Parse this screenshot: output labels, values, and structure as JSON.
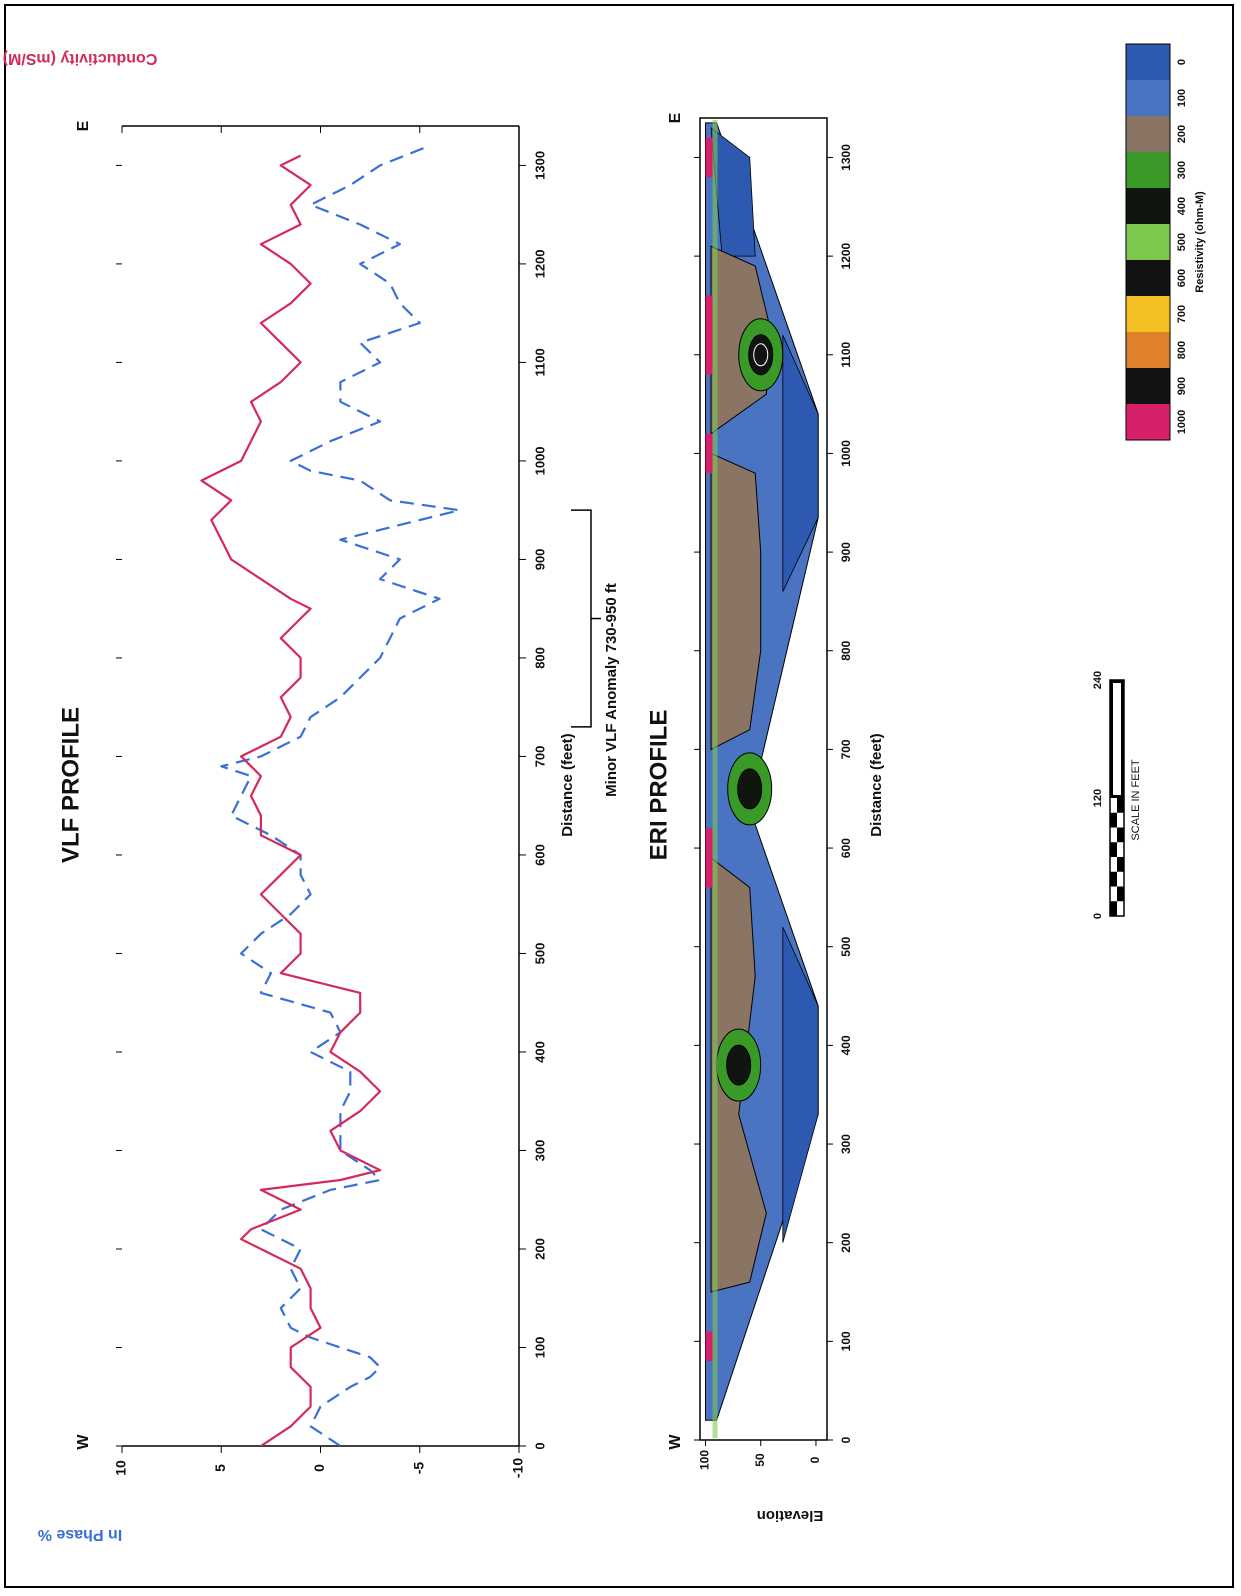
{
  "figure": {
    "scale_label": "SCALE IN FEET",
    "scale_ticks": [
      "0",
      "120",
      "240"
    ]
  },
  "chart_data": [
    {
      "type": "line",
      "title": "VLF PROFILE",
      "xlabel": "Distance (feet)",
      "ylabel": "In Phase %",
      "y2label": "Conductivity (mS/M)",
      "xlim": [
        0,
        1340
      ],
      "ylim": [
        -10,
        10
      ],
      "xticks": [
        "0",
        "100",
        "200",
        "300",
        "400",
        "500",
        "600",
        "700",
        "800",
        "900",
        "1000",
        "1100",
        "1200",
        "1300"
      ],
      "yticks": [
        "10",
        "5",
        "0",
        "-5",
        "-10"
      ],
      "end_labels": {
        "left": "W",
        "right": "E"
      },
      "annotation": {
        "text": "Minor VLF Anomaly 730-950 ft",
        "x_range": [
          730,
          950
        ]
      },
      "series": [
        {
          "name": "In Phase %",
          "color": "#3a6fd8",
          "style": "dashed",
          "x": [
            0,
            20,
            40,
            60,
            70,
            80,
            90,
            100,
            110,
            120,
            140,
            160,
            180,
            200,
            220,
            240,
            260,
            270,
            280,
            300,
            320,
            340,
            360,
            380,
            400,
            420,
            440,
            460,
            480,
            500,
            520,
            540,
            560,
            580,
            600,
            620,
            640,
            660,
            680,
            690,
            700,
            720,
            740,
            760,
            780,
            800,
            820,
            840,
            860,
            880,
            900,
            920,
            940,
            950,
            960,
            980,
            990,
            1000,
            1020,
            1040,
            1060,
            1080,
            1100,
            1120,
            1140,
            1160,
            1180,
            1200,
            1220,
            1240,
            1260,
            1280,
            1300,
            1320
          ],
          "y": [
            -1,
            0.5,
            0,
            -1.5,
            -2.5,
            -3,
            -2.5,
            -1,
            0.5,
            1.5,
            2,
            1,
            1.5,
            1,
            3,
            2,
            -0.5,
            -3,
            -2.5,
            -1,
            -1,
            -1,
            -1.5,
            -1.5,
            0.5,
            -1,
            -0.5,
            3,
            2.5,
            4,
            3,
            1.5,
            0.5,
            1,
            1,
            2.5,
            4.5,
            4,
            3.5,
            5,
            3,
            1,
            0.5,
            -1,
            -2,
            -3,
            -3.5,
            -4,
            -6,
            -3,
            -4,
            -1,
            -5,
            -7,
            -3.5,
            -2,
            0.5,
            1.5,
            -0.5,
            -3,
            -1,
            -1,
            -3,
            -2,
            -5,
            -4,
            -3.5,
            -2,
            -4,
            -2,
            0.5,
            -1.5,
            -3,
            -5.5
          ]
        },
        {
          "name": "Conductivity (mS/M)",
          "color": "#d42a5a",
          "style": "solid",
          "x": [
            0,
            20,
            40,
            60,
            80,
            100,
            120,
            140,
            160,
            180,
            200,
            210,
            220,
            240,
            260,
            270,
            280,
            300,
            320,
            340,
            360,
            380,
            400,
            420,
            440,
            460,
            480,
            500,
            520,
            540,
            560,
            580,
            600,
            610,
            620,
            640,
            660,
            680,
            700,
            720,
            740,
            760,
            780,
            800,
            820,
            840,
            850,
            860,
            880,
            900,
            920,
            940,
            960,
            980,
            1000,
            1020,
            1040,
            1060,
            1080,
            1100,
            1120,
            1140,
            1160,
            1180,
            1200,
            1220,
            1240,
            1260,
            1280,
            1300,
            1310
          ],
          "y": [
            3,
            1.5,
            0.5,
            0.5,
            1.5,
            1.5,
            0,
            0.5,
            0.5,
            1,
            3,
            4,
            3.5,
            1,
            3,
            -1,
            -3,
            -1,
            -0.5,
            -2,
            -3,
            -2,
            -0.5,
            -1,
            -2,
            -2,
            2,
            1,
            1,
            2,
            3,
            2,
            1,
            2,
            3,
            3,
            3.5,
            3,
            4,
            2,
            1.5,
            2,
            1,
            1,
            2,
            1,
            0.5,
            1.5,
            3,
            4.5,
            5,
            5.5,
            4.5,
            6,
            4,
            3.5,
            3,
            3.5,
            2,
            1,
            2,
            3,
            1.5,
            0.5,
            1.5,
            3,
            1,
            1.5,
            0.5,
            2,
            1
          ]
        }
      ]
    },
    {
      "type": "heatmap",
      "title": "ERI PROFILE",
      "xlabel": "Distance (feet)",
      "ylabel": "Elevation",
      "xlim": [
        0,
        1340
      ],
      "ylim": [
        -10,
        105
      ],
      "xticks": [
        "0",
        "100",
        "200",
        "300",
        "400",
        "500",
        "600",
        "700",
        "800",
        "900",
        "1000",
        "1100",
        "1200",
        "1300"
      ],
      "yticks": [
        "100",
        "50",
        "0"
      ],
      "end_labels": {
        "left": "W",
        "right": "E"
      },
      "colorbar": {
        "label": "Resistivity (ohm-M)",
        "ticks": [
          "0",
          "100",
          "200",
          "300",
          "400",
          "500",
          "600",
          "700",
          "800",
          "900",
          "1000"
        ],
        "colors": [
          "#2d59b0",
          "#4a73c2",
          "#8a7565",
          "#3a9a28",
          "#101510",
          "#7ec850",
          "#121212",
          "#f2c023",
          "#e0802a",
          "#121212",
          "#d8206a"
        ]
      },
      "zones": [
        {
          "x": 380,
          "elev": 70,
          "resistivity": 700
        },
        {
          "x": 1100,
          "elev": 50,
          "resistivity": 900
        },
        {
          "x": 660,
          "elev": 60,
          "resistivity": 600
        }
      ]
    }
  ]
}
